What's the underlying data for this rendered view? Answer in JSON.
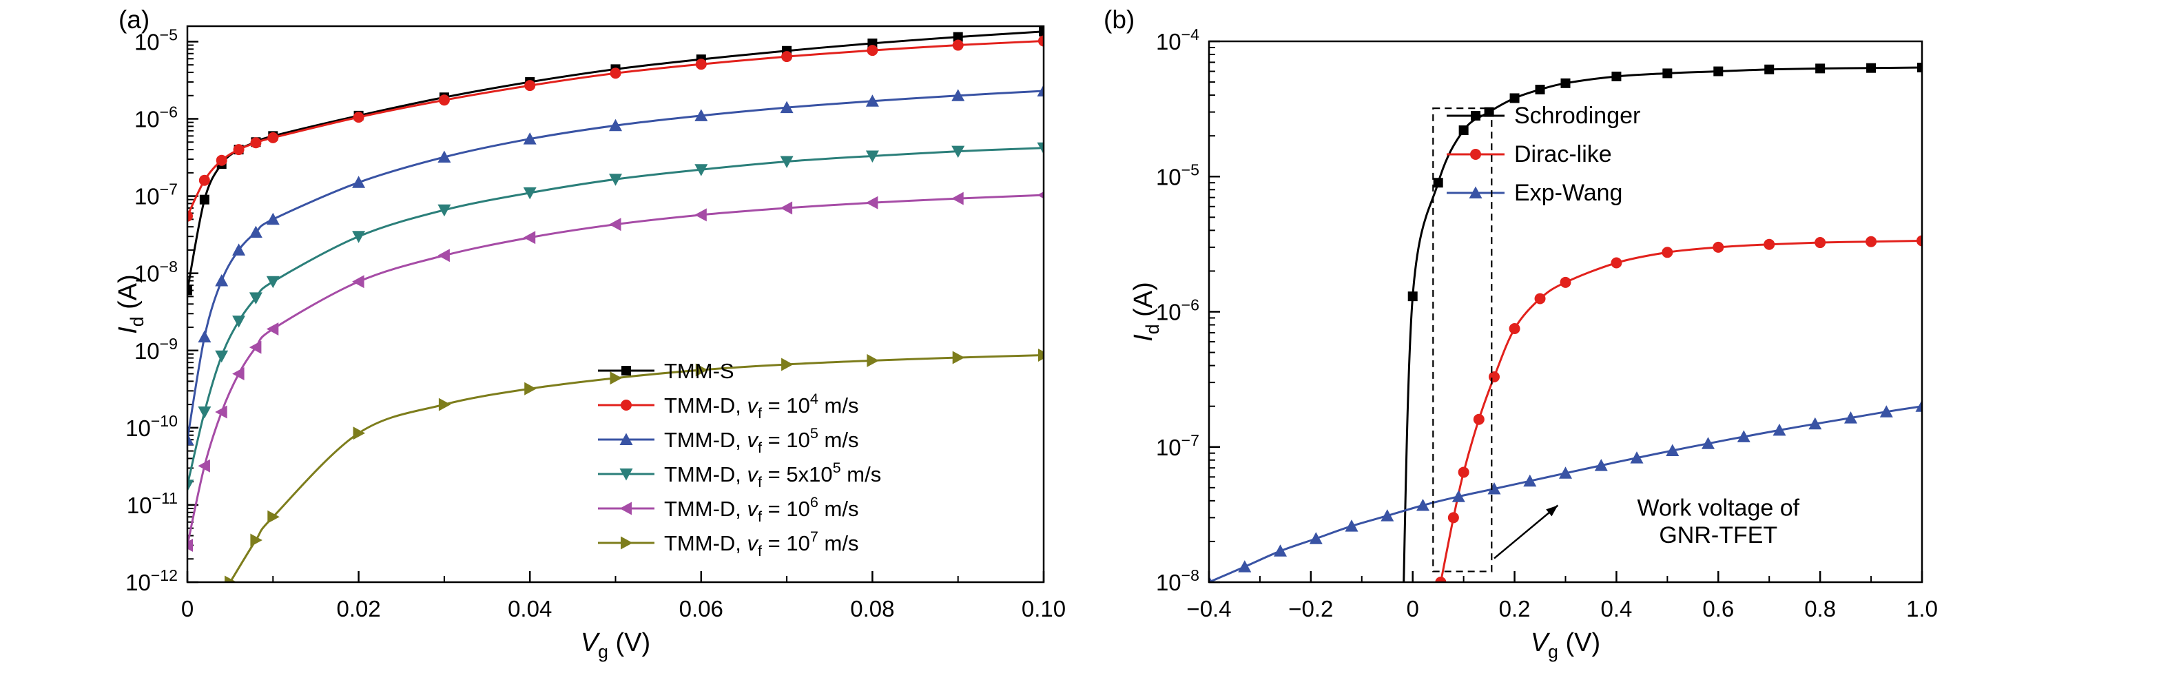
{
  "figure": {
    "background": "#ffffff",
    "panels": [
      {
        "tag": "(a)"
      },
      {
        "tag": "(b)"
      }
    ]
  },
  "chart_data": [
    {
      "type": "line",
      "panel": "a",
      "title": "",
      "xlabel": "*V*_{g} (V)",
      "ylabel": "*I*_{d} (A)",
      "xlim": [
        0,
        0.1
      ],
      "ylog_exp_range": [
        -12,
        -4.8
      ],
      "grid": false,
      "legend_location": "inside bottom right",
      "xticks": {
        "values": [
          0,
          0.02,
          0.04,
          0.06,
          0.08,
          0.1
        ],
        "labels": [
          "0",
          "0.02",
          "0.04",
          "0.06",
          "0.08",
          "0.10"
        ],
        "minor_step": 0.01
      },
      "ytick_exponents": [
        -12,
        -11,
        -10,
        -9,
        -8,
        -7,
        -6,
        -5
      ],
      "series": [
        {
          "name": "TMM-S",
          "label": "TMM-S",
          "color": "#000000",
          "marker": "square",
          "x": [
            0,
            0.002,
            0.004,
            0.006,
            0.008,
            0.01,
            0.02,
            0.03,
            0.04,
            0.05,
            0.06,
            0.07,
            0.08,
            0.09,
            0.1
          ],
          "y": [
            6e-09,
            9e-08,
            2.6e-07,
            4e-07,
            5e-07,
            6e-07,
            1.1e-06,
            1.9e-06,
            3e-06,
            4.4e-06,
            5.9e-06,
            7.6e-06,
            9.5e-06,
            1.15e-05,
            1.35e-05
          ]
        },
        {
          "name": "TMM-D-vf-1e4",
          "label": "TMM-D, *v*_{f} = 10^{4} m/s",
          "color": "#e2211c",
          "marker": "circle",
          "x": [
            0,
            0.002,
            0.004,
            0.006,
            0.008,
            0.01,
            0.02,
            0.03,
            0.04,
            0.05,
            0.06,
            0.07,
            0.08,
            0.09,
            0.1
          ],
          "y": [
            5.5e-08,
            1.6e-07,
            2.9e-07,
            4e-07,
            4.9e-07,
            5.7e-07,
            1.05e-06,
            1.75e-06,
            2.7e-06,
            3.9e-06,
            5.1e-06,
            6.4e-06,
            7.7e-06,
            9e-06,
            1.02e-05
          ]
        },
        {
          "name": "TMM-D-vf-1e5",
          "label": "TMM-D, *v*_{f} = 10^{5} m/s",
          "color": "#3953a4",
          "marker": "triangle-up",
          "x": [
            0,
            0.002,
            0.004,
            0.006,
            0.008,
            0.01,
            0.02,
            0.03,
            0.04,
            0.05,
            0.06,
            0.07,
            0.08,
            0.09,
            0.1
          ],
          "y": [
            7e-11,
            1.5e-09,
            8e-09,
            2e-08,
            3.4e-08,
            5e-08,
            1.5e-07,
            3.2e-07,
            5.5e-07,
            8.2e-07,
            1.1e-06,
            1.4e-06,
            1.7e-06,
            2e-06,
            2.3e-06
          ]
        },
        {
          "name": "TMM-D-vf-5e5",
          "label": "TMM-D, *v*_{f} = 5x10^{5} m/s",
          "color": "#2b7f7a",
          "marker": "triangle-down",
          "x": [
            0,
            0.002,
            0.004,
            0.006,
            0.008,
            0.01,
            0.02,
            0.03,
            0.04,
            0.05,
            0.06,
            0.07,
            0.08,
            0.09,
            0.1
          ],
          "y": [
            1.8e-11,
            1.6e-10,
            8.5e-10,
            2.4e-09,
            4.8e-09,
            7.8e-09,
            3e-08,
            6.6e-08,
            1.1e-07,
            1.65e-07,
            2.2e-07,
            2.8e-07,
            3.3e-07,
            3.8e-07,
            4.2e-07
          ]
        },
        {
          "name": "TMM-D-vf-1e6",
          "label": "TMM-D, *v*_{f} = 10^{6} m/s",
          "color": "#a64ca6",
          "marker": "triangle-left",
          "x": [
            0,
            0.002,
            0.004,
            0.006,
            0.008,
            0.01,
            0.02,
            0.03,
            0.04,
            0.05,
            0.06,
            0.07,
            0.08,
            0.09,
            0.1
          ],
          "y": [
            3e-12,
            3.2e-11,
            1.6e-10,
            5e-10,
            1.1e-09,
            1.9e-09,
            7.8e-09,
            1.7e-08,
            2.9e-08,
            4.3e-08,
            5.7e-08,
            7e-08,
            8.2e-08,
            9.3e-08,
            1.03e-07
          ]
        },
        {
          "name": "TMM-D-vf-1e7",
          "label": "TMM-D, *v*_{f} = 10^{7} m/s",
          "color": "#7d7d1c",
          "marker": "triangle-right",
          "x": [
            0.005,
            0.008,
            0.01,
            0.02,
            0.03,
            0.04,
            0.05,
            0.06,
            0.07,
            0.08,
            0.09,
            0.1
          ],
          "y": [
            1e-12,
            3.5e-12,
            7e-12,
            8.5e-11,
            2e-10,
            3.2e-10,
            4.4e-10,
            5.6e-10,
            6.6e-10,
            7.4e-10,
            8.1e-10,
            8.7e-10
          ]
        }
      ]
    },
    {
      "type": "line",
      "panel": "b",
      "title": "",
      "xlabel": "*V*_{g} (V)",
      "ylabel": "*I*_{d} (A)",
      "xlim": [
        -0.4,
        1.0
      ],
      "ylog_exp_range": [
        -8,
        -4
      ],
      "grid": false,
      "legend_location": "inside top center",
      "xticks": {
        "values": [
          -0.4,
          -0.2,
          0,
          0.2,
          0.4,
          0.6,
          0.8,
          1.0
        ],
        "labels": [
          "−0.4",
          "−0.2",
          "0",
          "0.2",
          "0.4",
          "0.6",
          "0.8",
          "1.0"
        ],
        "minor_step": 0.1
      },
      "ytick_exponents": [
        -8,
        -7,
        -6,
        -5,
        -4
      ],
      "series": [
        {
          "name": "Schrodinger",
          "label": "Schrodinger",
          "color": "#000000",
          "marker": "square",
          "x": [
            -0.02,
            0,
            0.05,
            0.1,
            0.15,
            0.2,
            0.25,
            0.3,
            0.4,
            0.5,
            0.6,
            0.7,
            0.8,
            0.9,
            1.0
          ],
          "y": [
            4e-09,
            1.3e-06,
            9e-06,
            2.2e-05,
            3e-05,
            3.8e-05,
            4.4e-05,
            4.9e-05,
            5.5e-05,
            5.8e-05,
            6e-05,
            6.2e-05,
            6.3e-05,
            6.35e-05,
            6.4e-05
          ]
        },
        {
          "name": "Dirac-like",
          "label": "Dirac-like",
          "color": "#e2211c",
          "marker": "circle",
          "x": [
            0.055,
            0.08,
            0.1,
            0.13,
            0.16,
            0.2,
            0.25,
            0.3,
            0.4,
            0.5,
            0.6,
            0.7,
            0.8,
            0.9,
            1.0
          ],
          "y": [
            1e-08,
            3e-08,
            6.5e-08,
            1.6e-07,
            3.3e-07,
            7.5e-07,
            1.25e-06,
            1.65e-06,
            2.3e-06,
            2.75e-06,
            3e-06,
            3.15e-06,
            3.25e-06,
            3.3e-06,
            3.35e-06
          ]
        },
        {
          "name": "Exp-Wang",
          "label": "Exp-Wang",
          "color": "#3953a4",
          "marker": "triangle-up",
          "x": [
            -0.4,
            -0.33,
            -0.26,
            -0.19,
            -0.12,
            -0.05,
            0.02,
            0.09,
            0.16,
            0.23,
            0.3,
            0.37,
            0.44,
            0.51,
            0.58,
            0.65,
            0.72,
            0.79,
            0.86,
            0.93,
            1.0
          ],
          "y": [
            1e-08,
            1.3e-08,
            1.7e-08,
            2.1e-08,
            2.6e-08,
            3.1e-08,
            3.7e-08,
            4.3e-08,
            4.9e-08,
            5.6e-08,
            6.4e-08,
            7.3e-08,
            8.3e-08,
            9.4e-08,
            1.06e-07,
            1.19e-07,
            1.33e-07,
            1.48e-07,
            1.64e-07,
            1.82e-07,
            2e-07
          ]
        }
      ],
      "annotations": {
        "dashed_box": {
          "x1": 0.04,
          "x2": 0.155,
          "y1": 1.2e-08,
          "y2": 3.2e-05
        },
        "arrow": {
          "x1": 0.16,
          "y1": 1.5e-08,
          "x2": 0.285,
          "y2": 3.7e-08
        },
        "note": {
          "lines": [
            "Work voltage of",
            "GNR-TFET"
          ],
          "x": 0.6,
          "y": [
            3.1e-08,
            1.95e-08
          ]
        }
      }
    }
  ]
}
